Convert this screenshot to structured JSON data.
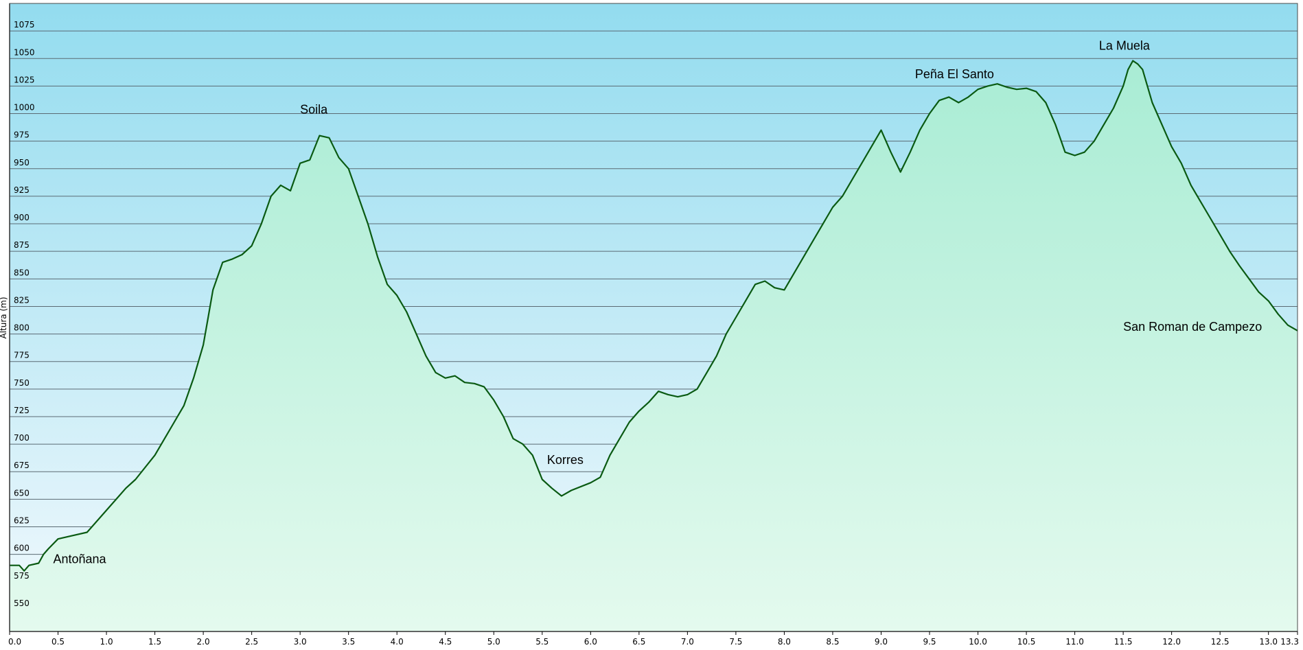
{
  "chart_data": {
    "type": "area",
    "title": "",
    "xlabel": "",
    "ylabel": "Altura (m)",
    "xlim": [
      0,
      13.3
    ],
    "ylim": [
      530,
      1100
    ],
    "grid": true,
    "y_ticks": [
      550,
      575,
      600,
      625,
      650,
      675,
      700,
      725,
      750,
      775,
      800,
      825,
      850,
      875,
      900,
      925,
      950,
      975,
      1000,
      1025,
      1050,
      1075
    ],
    "x_ticks": [
      "0.0",
      "0.5",
      "1.0",
      "1.5",
      "2.0",
      "2.5",
      "3.0",
      "3.5",
      "4.0",
      "4.5",
      "5.0",
      "5.5",
      "6.0",
      "6.5",
      "7.0",
      "7.5",
      "8.0",
      "8.5",
      "9.0",
      "9.5",
      "10.0",
      "10.5",
      "11.0",
      "11.5",
      "12.0",
      "12.5",
      "13.0",
      "13.3"
    ],
    "colors": {
      "line": "#0a5a12",
      "fill_top": "#a8ecd4",
      "fill_bottom": "#e4faee",
      "sky_top": "#93dcef",
      "sky_bottom": "#f2f9fd"
    },
    "series": [
      {
        "x": [
          0.0,
          0.1,
          0.15,
          0.2,
          0.3,
          0.35,
          0.4,
          0.5,
          0.6,
          0.65,
          0.8,
          1.0,
          1.1,
          1.2,
          1.3,
          1.5,
          1.6,
          1.7,
          1.8,
          1.9,
          2.0,
          2.05,
          2.1,
          2.2,
          2.3,
          2.4,
          2.5,
          2.6,
          2.7,
          2.8,
          2.9,
          3.0,
          3.1,
          3.2,
          3.3,
          3.4,
          3.5,
          3.6,
          3.7,
          3.8,
          3.9,
          4.0,
          4.1,
          4.2,
          4.3,
          4.4,
          4.5,
          4.6,
          4.7,
          4.8,
          4.9,
          5.0,
          5.1,
          5.2,
          5.3,
          5.4,
          5.5,
          5.6,
          5.7,
          5.8,
          6.0,
          6.1,
          6.2,
          6.3,
          6.4,
          6.5,
          6.6,
          6.7,
          6.8,
          6.9,
          7.0,
          7.1,
          7.2,
          7.3,
          7.4,
          7.5,
          7.6,
          7.7,
          7.8,
          7.9,
          8.0,
          8.1,
          8.2,
          8.3,
          8.4,
          8.5,
          8.6,
          8.7,
          8.8,
          8.9,
          9.0,
          9.1,
          9.2,
          9.3,
          9.4,
          9.5,
          9.6,
          9.7,
          9.8,
          9.9,
          10.0,
          10.1,
          10.2,
          10.3,
          10.4,
          10.5,
          10.6,
          10.7,
          10.8,
          10.9,
          11.0,
          11.1,
          11.2,
          11.3,
          11.4,
          11.5,
          11.55,
          11.6,
          11.65,
          11.7,
          11.8,
          11.9,
          12.0,
          12.1,
          12.2,
          12.3,
          12.4,
          12.5,
          12.6,
          12.7,
          12.8,
          12.9,
          13.0,
          13.1,
          13.2,
          13.3
        ],
        "y": [
          590,
          590,
          585,
          590,
          592,
          600,
          605,
          614,
          616,
          617,
          620,
          640,
          650,
          660,
          668,
          690,
          705,
          720,
          735,
          760,
          790,
          815,
          840,
          865,
          868,
          872,
          880,
          900,
          925,
          935,
          930,
          955,
          958,
          980,
          978,
          960,
          950,
          925,
          900,
          870,
          845,
          835,
          820,
          800,
          780,
          765,
          760,
          762,
          756,
          755,
          752,
          740,
          725,
          705,
          700,
          690,
          668,
          660,
          653,
          658,
          665,
          670,
          690,
          705,
          720,
          730,
          738,
          748,
          745,
          743,
          745,
          750,
          765,
          780,
          800,
          815,
          830,
          845,
          848,
          842,
          840,
          855,
          870,
          885,
          900,
          915,
          925,
          940,
          955,
          970,
          985,
          965,
          947,
          965,
          985,
          1000,
          1012,
          1015,
          1010,
          1015,
          1022,
          1025,
          1027,
          1024,
          1022,
          1023,
          1020,
          1010,
          990,
          965,
          962,
          965,
          975,
          990,
          1005,
          1025,
          1040,
          1048,
          1045,
          1040,
          1010,
          990,
          970,
          955,
          935,
          920,
          905,
          890,
          875,
          862,
          850,
          838,
          830,
          818,
          808,
          803
        ]
      }
    ],
    "annotations": [
      {
        "text": "Antoñana",
        "x": 0.45,
        "y": 592
      },
      {
        "text": "Soila",
        "x": 3.0,
        "y": 1000
      },
      {
        "text": "Korres",
        "x": 5.55,
        "y": 682
      },
      {
        "text": "Peña El Santo",
        "x": 9.35,
        "y": 1032
      },
      {
        "text": "La Muela",
        "x": 11.25,
        "y": 1058
      },
      {
        "text": "San Roman de Campezo",
        "x": 11.5,
        "y": 803
      }
    ]
  }
}
